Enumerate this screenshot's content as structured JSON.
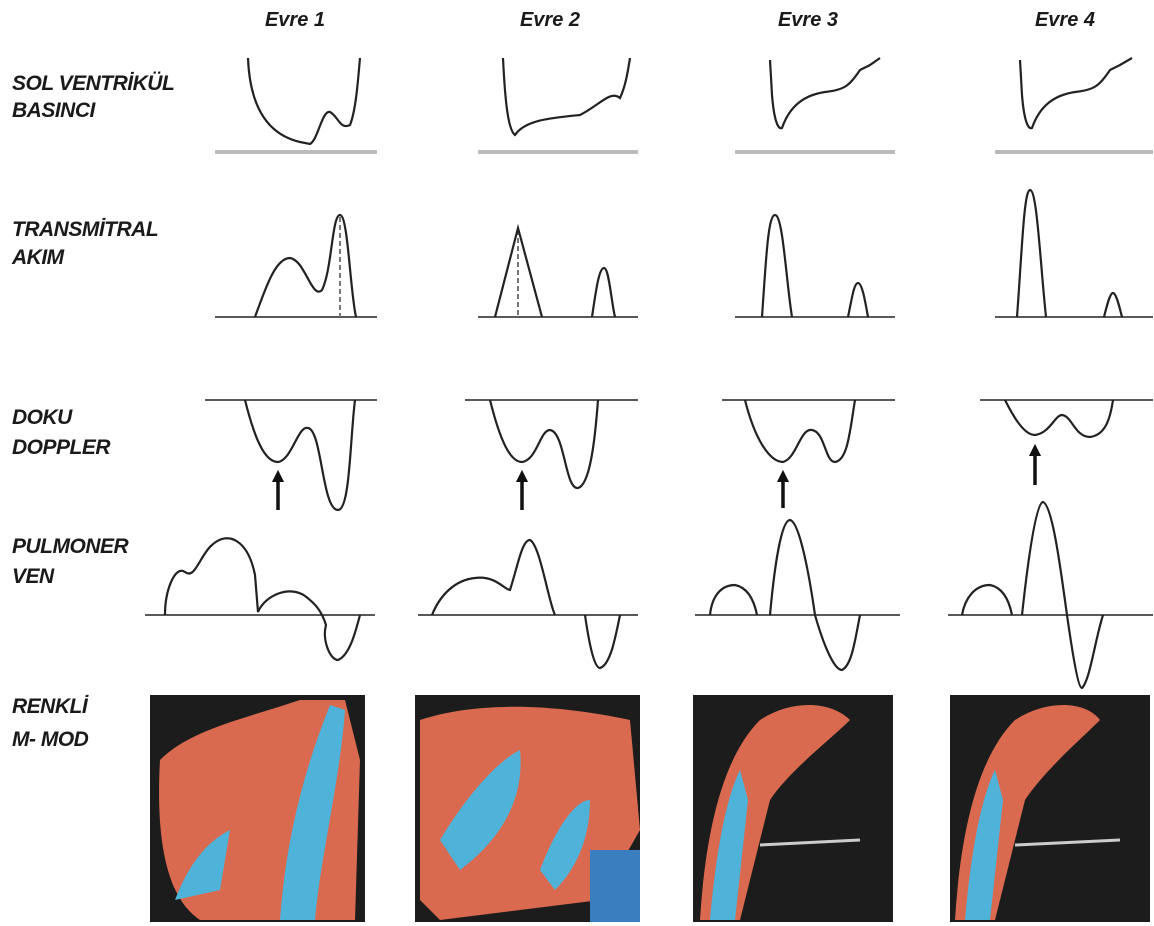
{
  "header": {
    "columns": [
      "Evre 1",
      "Evre 2",
      "Evre 3",
      "Evre 4"
    ]
  },
  "rows": [
    [
      "SOL VENTRİKÜL",
      "BASINCI"
    ],
    [
      "TRANSMİTRAL",
      "AKIM"
    ],
    [
      "DOKU",
      "DOPPLER"
    ],
    [
      "PULMONER",
      "VEN"
    ],
    [
      "RENKLİ",
      "M- MOD"
    ]
  ]
}
